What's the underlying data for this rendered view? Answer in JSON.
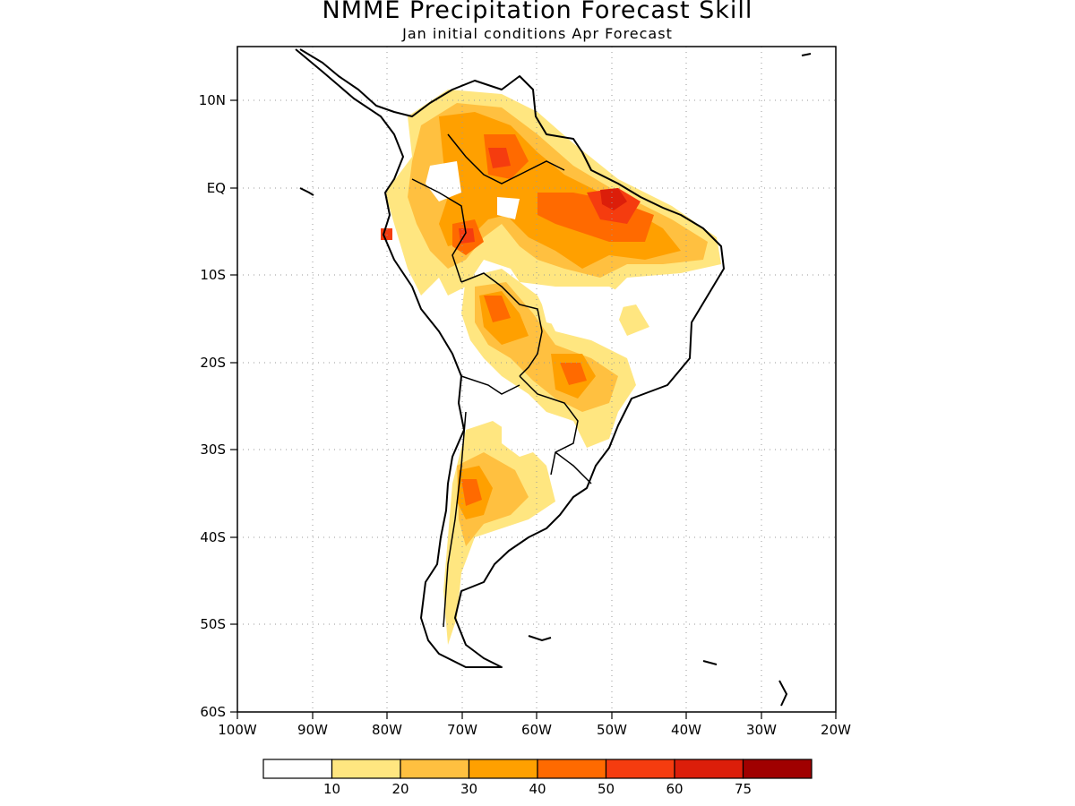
{
  "title": "NMME Precipitation Forecast Skill",
  "subtitle": "Jan initial conditions  Apr Forecast",
  "map": {
    "lon_range": [
      -100,
      -20
    ],
    "lat_range": [
      -60,
      15
    ],
    "lon_labels": [
      "100W",
      "90W",
      "80W",
      "70W",
      "60W",
      "50W",
      "40W",
      "30W",
      "20W"
    ],
    "lat_labels": [
      "10N",
      "EQ",
      "10S",
      "20S",
      "30S",
      "40S",
      "50S",
      "60S"
    ],
    "gridlines": "dotted"
  },
  "colorbar": {
    "labels": [
      "10",
      "20",
      "30",
      "40",
      "50",
      "60",
      "75"
    ],
    "colors": [
      "#ffffff",
      "#ffe680",
      "#ffc040",
      "#ffa000",
      "#ff6a00",
      "#f53c0f",
      "#dc1e0a",
      "#a00000"
    ]
  }
}
